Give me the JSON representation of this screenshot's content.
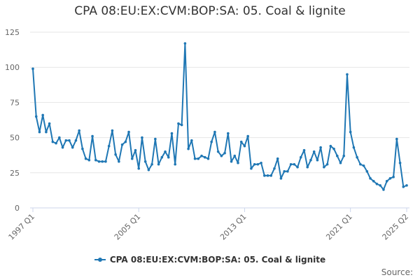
{
  "title": "CPA 08:EU:EX:CVM:BOP:SA: 05. Coal & lignite",
  "source_label": "Source:",
  "colors": {
    "series": "#1f77b4",
    "grid": "#e6e6e6",
    "axis": "#ccd6eb"
  },
  "chart_data": {
    "type": "line",
    "title": "CPA 08:EU:EX:CVM:BOP:SA: 05. Coal & lignite",
    "xlabel": "",
    "ylabel": "",
    "ylim": [
      0,
      125
    ],
    "yticks": [
      "0",
      "25",
      "50",
      "75",
      "100",
      "125"
    ],
    "xtick_labels": [
      "1997 Q1",
      "2005 Q1",
      "2013 Q1",
      "2021 Q1",
      "2025 Q2"
    ],
    "grid": true,
    "legend_position": "bottom-center",
    "series": [
      {
        "name": "CPA 08:EU:EX:CVM:BOP:SA: 05. Coal & lignite",
        "x_start": "1997 Q1",
        "frequency": "quarterly",
        "values": [
          99,
          65,
          54,
          66,
          54,
          60,
          47,
          46,
          50,
          43,
          48,
          48,
          43,
          48,
          55,
          42,
          35,
          34,
          51,
          34,
          33,
          33,
          33,
          44,
          55,
          38,
          33,
          45,
          47,
          54,
          35,
          41,
          28,
          50,
          33,
          27,
          31,
          49,
          31,
          36,
          40,
          36,
          53,
          31,
          60,
          59,
          117,
          42,
          48,
          35,
          35,
          37,
          36,
          35,
          47,
          54,
          40,
          37,
          39,
          53,
          33,
          37,
          32,
          47,
          44,
          51,
          28,
          31,
          31,
          32,
          23,
          23,
          23,
          28,
          35,
          21,
          26,
          26,
          31,
          31,
          29,
          36,
          41,
          29,
          34,
          40,
          34,
          43,
          29,
          31,
          44,
          42,
          37,
          32,
          37,
          95,
          54,
          43,
          36,
          31,
          30,
          26,
          21,
          19,
          17,
          16,
          13,
          19,
          21,
          22,
          49,
          32,
          15,
          16
        ]
      }
    ]
  }
}
